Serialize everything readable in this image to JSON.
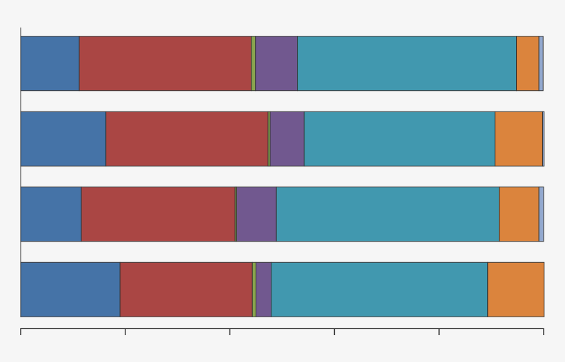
{
  "chart_data": {
    "type": "bar",
    "orientation": "horizontal",
    "stacked": true,
    "categories": [
      null,
      null,
      null,
      null
    ],
    "series": [
      {
        "color": "#4573a7",
        "values": [
          11.2,
          16.3,
          11.6,
          19.0
        ]
      },
      {
        "color": "#aa4644",
        "values": [
          32.9,
          31.0,
          29.4,
          25.3
        ]
      },
      {
        "color": "#89a54e",
        "values": [
          0.8,
          0.4,
          0.3,
          0.7
        ]
      },
      {
        "color": "#71588f",
        "values": [
          8.0,
          6.5,
          7.6,
          2.9
        ]
      },
      {
        "color": "#4198af",
        "values": [
          41.9,
          36.5,
          42.6,
          41.4
        ]
      },
      {
        "color": "#db843d",
        "values": [
          4.3,
          9.1,
          7.6,
          10.8
        ]
      },
      {
        "color": "#93a9cf",
        "values": [
          0.8,
          0.3,
          0.9,
          0
        ]
      }
    ],
    "xlim": [
      0,
      100
    ],
    "xticks": [
      0,
      20,
      40,
      60,
      80,
      100
    ]
  }
}
